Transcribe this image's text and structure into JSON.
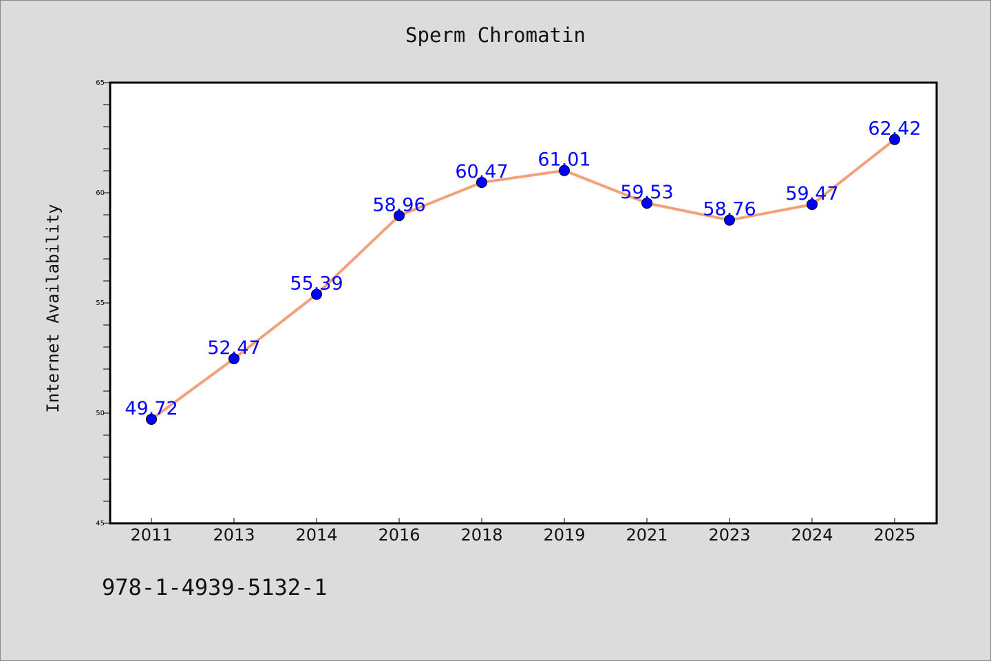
{
  "colors": {
    "background": "#dcdcdc",
    "plot_background": "#ffffff",
    "line": "#f4a07a",
    "marker": "#0000ff",
    "data_label": "#0000ff"
  },
  "footer": {
    "isbn": "978-1-4939-5132-1"
  },
  "chart_data": {
    "type": "line",
    "title": "Sperm Chromatin",
    "xlabel": "",
    "ylabel": "Internet Availability",
    "categories": [
      "2011",
      "2013",
      "2014",
      "2016",
      "2018",
      "2019",
      "2021",
      "2023",
      "2024",
      "2025"
    ],
    "values": [
      49.72,
      52.47,
      55.39,
      58.96,
      60.47,
      61.01,
      59.53,
      58.76,
      59.47,
      62.42
    ],
    "ylim": [
      45,
      65
    ],
    "yticks": [
      45,
      50,
      55,
      60,
      65
    ],
    "grid": false,
    "legend": "none",
    "markers": true,
    "data_labels": true
  }
}
